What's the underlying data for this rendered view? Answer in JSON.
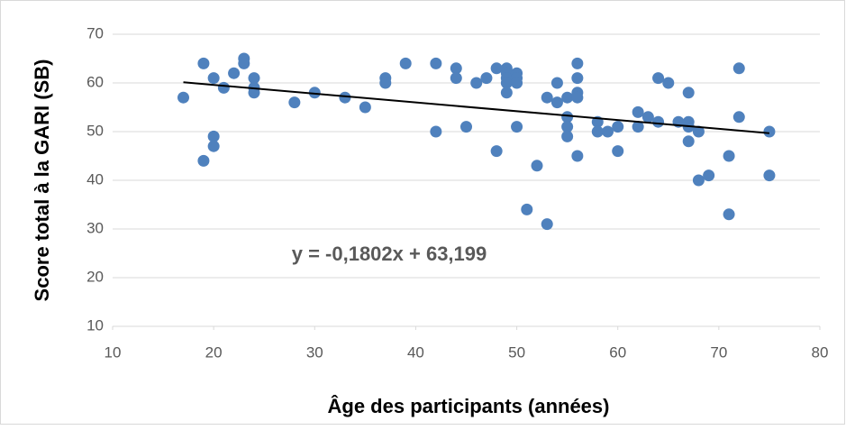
{
  "chart_data": {
    "type": "scatter",
    "x_label": "Âge des participants (années)",
    "y_label": "Score total à la GARI (SB)",
    "xlim": [
      10,
      80
    ],
    "xticks": [
      10,
      20,
      30,
      40,
      50,
      60,
      70,
      80
    ],
    "ylim": [
      10,
      70
    ],
    "yticks": [
      10,
      20,
      30,
      40,
      50,
      60,
      70
    ],
    "grid": true,
    "color": "#4f81bd",
    "x": [
      17,
      19,
      19,
      20,
      20,
      20,
      21,
      22,
      23,
      23,
      24,
      24,
      24,
      28,
      30,
      33,
      35,
      37,
      37,
      39,
      42,
      42,
      44,
      44,
      45,
      46,
      47,
      48,
      48,
      49,
      49,
      49,
      49,
      49,
      50,
      50,
      50,
      50,
      51,
      52,
      53,
      53,
      54,
      54,
      55,
      55,
      55,
      55,
      56,
      56,
      56,
      56,
      56,
      58,
      58,
      59,
      60,
      60,
      62,
      62,
      63,
      64,
      64,
      65,
      66,
      67,
      67,
      67,
      67,
      68,
      68,
      69,
      71,
      71,
      72,
      72,
      75,
      75
    ],
    "values": [
      57,
      64,
      44,
      61,
      49,
      47,
      59,
      62,
      65,
      64,
      61,
      59,
      58,
      56,
      58,
      57,
      55,
      61,
      60,
      64,
      64,
      50,
      63,
      61,
      51,
      60,
      61,
      63,
      46,
      63,
      62,
      61,
      60,
      58,
      62,
      61,
      60,
      51,
      34,
      43,
      57,
      31,
      60,
      56,
      57,
      53,
      51,
      49,
      64,
      61,
      58,
      57,
      45,
      52,
      50,
      50,
      51,
      46,
      54,
      51,
      53,
      61,
      52,
      60,
      52,
      58,
      52,
      51,
      48,
      50,
      40,
      41,
      45,
      33,
      63,
      53,
      50,
      41
    ],
    "trendline": {
      "slope": -0.1802,
      "intercept": 63.199,
      "label": "y = -0,1802x + 63,199",
      "color": "#000000"
    }
  }
}
